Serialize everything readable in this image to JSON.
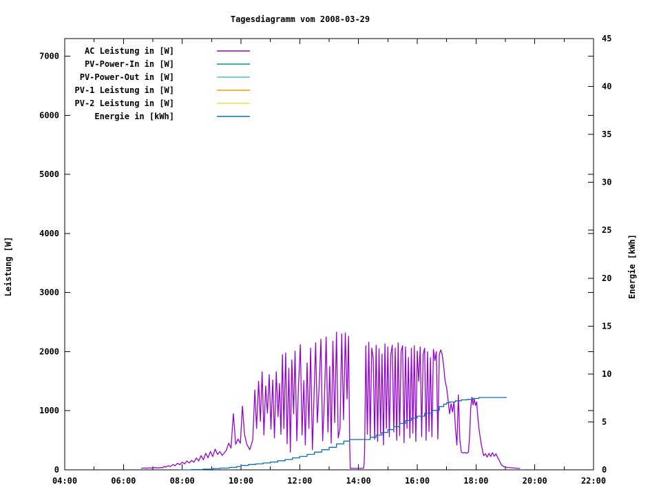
{
  "title": "Tagesdiagramm vom 2008-03-29",
  "axes": {
    "x": {
      "range": [
        4,
        22
      ],
      "major_ticks": [
        {
          "value": 4,
          "label": "04:00"
        },
        {
          "value": 6,
          "label": "06:00"
        },
        {
          "value": 8,
          "label": "08:00"
        },
        {
          "value": 10,
          "label": "10:00"
        },
        {
          "value": 12,
          "label": "12:00"
        },
        {
          "value": 14,
          "label": "14:00"
        },
        {
          "value": 16,
          "label": "16:00"
        },
        {
          "value": 18,
          "label": "18:00"
        },
        {
          "value": 20,
          "label": "20:00"
        },
        {
          "value": 22,
          "label": "22:00"
        }
      ],
      "minor_tick_values": [
        5,
        7,
        9,
        11,
        13,
        15,
        17,
        19,
        21
      ]
    },
    "y1": {
      "label": "Leistung [W]",
      "range": [
        0,
        7300
      ],
      "ticks": [
        {
          "value": 0,
          "label": "0"
        },
        {
          "value": 1000,
          "label": "1000"
        },
        {
          "value": 2000,
          "label": "2000"
        },
        {
          "value": 3000,
          "label": "3000"
        },
        {
          "value": 4000,
          "label": "4000"
        },
        {
          "value": 5000,
          "label": "5000"
        },
        {
          "value": 6000,
          "label": "6000"
        },
        {
          "value": 7000,
          "label": "7000"
        }
      ]
    },
    "y2": {
      "label": "Energie [kWh]",
      "range": [
        0,
        45
      ],
      "ticks": [
        {
          "value": 0,
          "label": "0"
        },
        {
          "value": 5,
          "label": "5"
        },
        {
          "value": 10,
          "label": "10"
        },
        {
          "value": 15,
          "label": "15"
        },
        {
          "value": 20,
          "label": "20"
        },
        {
          "value": 25,
          "label": "25"
        },
        {
          "value": 30,
          "label": "30"
        },
        {
          "value": 35,
          "label": "35"
        },
        {
          "value": 40,
          "label": "40"
        },
        {
          "value": 45,
          "label": "45"
        }
      ]
    }
  },
  "chart_data": {
    "type": "line",
    "title": "Tagesdiagramm vom 2008-03-29",
    "x_unit": "time of day (hours)",
    "x_range": [
      4,
      22
    ],
    "y1_label": "Leistung [W]",
    "y1_range": [
      0,
      7300
    ],
    "y2_label": "Energie [kWh]",
    "y2_range": [
      0,
      45
    ],
    "grid": false,
    "legend_position": "top-left-inside",
    "series": [
      {
        "name": "AC Leistung in [W]",
        "slug": "ac-leistung",
        "axis": "y1",
        "color": "#9400D3",
        "step": false,
        "points": [
          [
            6.6,
            25
          ],
          [
            6.7,
            30
          ],
          [
            6.78,
            27
          ],
          [
            6.88,
            34
          ],
          [
            6.98,
            29
          ],
          [
            7.08,
            37
          ],
          [
            7.18,
            31
          ],
          [
            7.28,
            39
          ],
          [
            7.33,
            34
          ],
          [
            7.38,
            55
          ],
          [
            7.45,
            45
          ],
          [
            7.52,
            70
          ],
          [
            7.6,
            55
          ],
          [
            7.68,
            90
          ],
          [
            7.76,
            70
          ],
          [
            7.84,
            112
          ],
          [
            7.92,
            85
          ],
          [
            8.0,
            130
          ],
          [
            8.08,
            100
          ],
          [
            8.16,
            150
          ],
          [
            8.24,
            115
          ],
          [
            8.32,
            160
          ],
          [
            8.4,
            130
          ],
          [
            8.48,
            200
          ],
          [
            8.56,
            150
          ],
          [
            8.64,
            240
          ],
          [
            8.72,
            170
          ],
          [
            8.8,
            280
          ],
          [
            8.88,
            205
          ],
          [
            8.96,
            310
          ],
          [
            9.04,
            225
          ],
          [
            9.12,
            350
          ],
          [
            9.2,
            260
          ],
          [
            9.28,
            310
          ],
          [
            9.36,
            245
          ],
          [
            9.44,
            290
          ],
          [
            9.5,
            330
          ],
          [
            9.58,
            450
          ],
          [
            9.66,
            370
          ],
          [
            9.74,
            950
          ],
          [
            9.82,
            430
          ],
          [
            9.9,
            520
          ],
          [
            9.98,
            450
          ],
          [
            10.05,
            1080
          ],
          [
            10.12,
            600
          ],
          [
            10.2,
            430
          ],
          [
            10.3,
            340
          ],
          [
            10.4,
            510
          ],
          [
            10.47,
            1350
          ],
          [
            10.53,
            700
          ],
          [
            10.6,
            1500
          ],
          [
            10.66,
            820
          ],
          [
            10.72,
            1660
          ],
          [
            10.78,
            590
          ],
          [
            10.84,
            1420
          ],
          [
            10.9,
            960
          ],
          [
            10.96,
            1610
          ],
          [
            11.02,
            690
          ],
          [
            11.08,
            1520
          ],
          [
            11.14,
            540
          ],
          [
            11.2,
            1660
          ],
          [
            11.26,
            900
          ],
          [
            11.31,
            1460
          ],
          [
            11.36,
            600
          ],
          [
            11.41,
            1950
          ],
          [
            11.46,
            700
          ],
          [
            11.52,
            1980
          ],
          [
            11.57,
            440
          ],
          [
            11.63,
            1720
          ],
          [
            11.68,
            300
          ],
          [
            11.73,
            1860
          ],
          [
            11.79,
            950
          ],
          [
            11.84,
            2010
          ],
          [
            11.9,
            490
          ],
          [
            11.96,
            1450
          ],
          [
            12.02,
            2120
          ],
          [
            12.08,
            590
          ],
          [
            12.14,
            1510
          ],
          [
            12.19,
            420
          ],
          [
            12.25,
            1810
          ],
          [
            12.31,
            700
          ],
          [
            12.37,
            2060
          ],
          [
            12.43,
            340
          ],
          [
            12.49,
            1300
          ],
          [
            12.54,
            2150
          ],
          [
            12.6,
            800
          ],
          [
            12.66,
            1400
          ],
          [
            12.72,
            2210
          ],
          [
            12.78,
            490
          ],
          [
            12.84,
            1210
          ],
          [
            12.9,
            2250
          ],
          [
            12.96,
            640
          ],
          [
            13.02,
            1750
          ],
          [
            13.07,
            450
          ],
          [
            13.13,
            2180
          ],
          [
            13.19,
            800
          ],
          [
            13.25,
            2330
          ],
          [
            13.31,
            540
          ],
          [
            13.37,
            700
          ],
          [
            13.43,
            2300
          ],
          [
            13.49,
            850
          ],
          [
            13.55,
            2320
          ],
          [
            13.61,
            1200
          ],
          [
            13.66,
            2260
          ],
          [
            13.7,
            420
          ],
          [
            13.72,
            25
          ],
          [
            14.17,
            25
          ],
          [
            14.19,
            100
          ],
          [
            14.21,
            350
          ],
          [
            14.25,
            2100
          ],
          [
            14.3,
            600
          ],
          [
            14.35,
            2160
          ],
          [
            14.4,
            550
          ],
          [
            14.45,
            2060
          ],
          [
            14.5,
            1900
          ],
          [
            14.55,
            520
          ],
          [
            14.6,
            2110
          ],
          [
            14.65,
            480
          ],
          [
            14.7,
            2050
          ],
          [
            14.75,
            610
          ],
          [
            14.8,
            1960
          ],
          [
            14.85,
            420
          ],
          [
            14.9,
            2130
          ],
          [
            14.95,
            700
          ],
          [
            15.0,
            2080
          ],
          [
            15.05,
            560
          ],
          [
            15.1,
            1950
          ],
          [
            15.15,
            2110
          ],
          [
            15.2,
            640
          ],
          [
            15.25,
            2060
          ],
          [
            15.3,
            500
          ],
          [
            15.35,
            2150
          ],
          [
            15.4,
            580
          ],
          [
            15.45,
            2000
          ],
          [
            15.5,
            2100
          ],
          [
            15.55,
            460
          ],
          [
            15.6,
            2080
          ],
          [
            15.65,
            700
          ],
          [
            15.7,
            1900
          ],
          [
            15.75,
            540
          ],
          [
            15.8,
            2060
          ],
          [
            15.85,
            620
          ],
          [
            15.9,
            2100
          ],
          [
            15.95,
            480
          ],
          [
            16.0,
            2010
          ],
          [
            16.05,
            1500
          ],
          [
            16.1,
            2080
          ],
          [
            16.15,
            560
          ],
          [
            16.2,
            1950
          ],
          [
            16.25,
            2060
          ],
          [
            16.3,
            500
          ],
          [
            16.35,
            2000
          ],
          [
            16.4,
            650
          ],
          [
            16.45,
            1900
          ],
          [
            16.5,
            560
          ],
          [
            16.55,
            2040
          ],
          [
            16.6,
            1850
          ],
          [
            16.65,
            2000
          ],
          [
            16.7,
            520
          ],
          [
            16.75,
            1950
          ],
          [
            16.8,
            2030
          ],
          [
            16.85,
            1950
          ],
          [
            16.9,
            1750
          ],
          [
            16.95,
            1500
          ],
          [
            17.0,
            1390
          ],
          [
            17.05,
            1180
          ],
          [
            17.1,
            950
          ],
          [
            17.15,
            1120
          ],
          [
            17.2,
            980
          ],
          [
            17.25,
            1150
          ],
          [
            17.3,
            700
          ],
          [
            17.35,
            420
          ],
          [
            17.4,
            1270
          ],
          [
            17.45,
            500
          ],
          [
            17.5,
            300
          ],
          [
            17.56,
            285
          ],
          [
            17.62,
            295
          ],
          [
            17.68,
            280
          ],
          [
            17.74,
            295
          ],
          [
            17.78,
            550
          ],
          [
            17.82,
            1050
          ],
          [
            17.86,
            1230
          ],
          [
            17.9,
            1100
          ],
          [
            17.94,
            1200
          ],
          [
            17.98,
            1090
          ],
          [
            18.02,
            1150
          ],
          [
            18.06,
            900
          ],
          [
            18.1,
            700
          ],
          [
            18.14,
            560
          ],
          [
            18.18,
            430
          ],
          [
            18.22,
            330
          ],
          [
            18.26,
            240
          ],
          [
            18.32,
            270
          ],
          [
            18.38,
            215
          ],
          [
            18.44,
            280
          ],
          [
            18.5,
            225
          ],
          [
            18.56,
            290
          ],
          [
            18.62,
            230
          ],
          [
            18.68,
            270
          ],
          [
            18.74,
            205
          ],
          [
            18.8,
            150
          ],
          [
            18.86,
            90
          ],
          [
            18.92,
            60
          ],
          [
            19.0,
            45
          ],
          [
            19.1,
            40
          ],
          [
            19.2,
            35
          ],
          [
            19.3,
            30
          ],
          [
            19.4,
            25
          ],
          [
            19.5,
            22
          ]
        ]
      },
      {
        "name": "PV-Power-In in [W]",
        "slug": "pv-power-in",
        "axis": "y1",
        "color": "#009E73",
        "step": false,
        "points": []
      },
      {
        "name": "PV-Power-Out in [W]",
        "slug": "pv-power-out",
        "axis": "y1",
        "color": "#56B4E9",
        "step": false,
        "points": []
      },
      {
        "name": "PV-1 Leistung in [W]",
        "slug": "pv-1-leistung",
        "axis": "y1",
        "color": "#E69F00",
        "step": false,
        "points": []
      },
      {
        "name": "PV-2 Leistung in [W]",
        "slug": "pv-2-leistung",
        "axis": "y1",
        "color": "#F0E442",
        "step": false,
        "points": []
      },
      {
        "name": "Energie in [kWh]",
        "slug": "energie",
        "axis": "y2",
        "color": "#0072B2",
        "step": true,
        "points": [
          [
            7.9,
            0.0
          ],
          [
            8.3,
            0.03
          ],
          [
            8.7,
            0.07
          ],
          [
            9.05,
            0.14
          ],
          [
            9.3,
            0.18
          ],
          [
            9.6,
            0.26
          ],
          [
            9.85,
            0.33
          ],
          [
            10.0,
            0.45
          ],
          [
            10.25,
            0.55
          ],
          [
            10.5,
            0.62
          ],
          [
            10.75,
            0.72
          ],
          [
            11.0,
            0.81
          ],
          [
            11.25,
            0.95
          ],
          [
            11.5,
            1.08
          ],
          [
            11.75,
            1.25
          ],
          [
            12.0,
            1.4
          ],
          [
            12.25,
            1.62
          ],
          [
            12.5,
            1.85
          ],
          [
            12.75,
            2.1
          ],
          [
            13.0,
            2.35
          ],
          [
            13.25,
            2.7
          ],
          [
            13.5,
            3.0
          ],
          [
            13.7,
            3.16
          ],
          [
            14.17,
            3.16
          ],
          [
            14.4,
            3.4
          ],
          [
            14.6,
            3.62
          ],
          [
            14.8,
            3.9
          ],
          [
            15.0,
            4.2
          ],
          [
            15.2,
            4.5
          ],
          [
            15.4,
            4.85
          ],
          [
            15.6,
            5.15
          ],
          [
            15.8,
            5.4
          ],
          [
            16.0,
            5.6
          ],
          [
            16.25,
            5.9
          ],
          [
            16.5,
            6.2
          ],
          [
            16.75,
            6.6
          ],
          [
            16.9,
            6.85
          ],
          [
            17.0,
            7.0
          ],
          [
            17.1,
            7.08
          ],
          [
            17.3,
            7.2
          ],
          [
            17.5,
            7.3
          ],
          [
            17.7,
            7.35
          ],
          [
            17.9,
            7.45
          ],
          [
            18.1,
            7.55
          ],
          [
            19.05,
            7.55
          ]
        ]
      }
    ]
  }
}
